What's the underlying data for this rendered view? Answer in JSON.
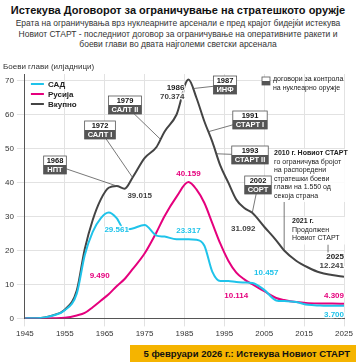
{
  "chart_data": {
    "type": "line",
    "title": "Истекува Договорот за ограничување на стратешкото оружје",
    "subtitle": "Ерата на ограничувања врз нуклеарните арсенали е пред крајот бидејќи истекува Новиот СТАРТ - последниот договор за ограничување на оперативните ракети и боеви глави во двата најголеми светски арсенала",
    "footer": "5 февруари 2026 г.: Истекува Новиот СТАРТ",
    "y_label": "Боеви глави (илјадници)",
    "x": [
      1945,
      1948,
      1950,
      1952,
      1955,
      1958,
      1960,
      1962,
      1964,
      1966,
      1968,
      1970,
      1972,
      1975,
      1978,
      1980,
      1983,
      1986,
      1988,
      1990,
      1992,
      1994,
      1996,
      1998,
      2000,
      2002,
      2005,
      2008,
      2010,
      2013,
      2016,
      2019,
      2022,
      2025
    ],
    "series": [
      {
        "name": "САД",
        "color": "#1fc3ea",
        "values": [
          0.002,
          0.05,
          0.3,
          0.84,
          2.4,
          7.3,
          18.6,
          25.5,
          29.5,
          31.2,
          29.561,
          26,
          26.5,
          27.5,
          24.4,
          24.1,
          23.3,
          23.317,
          23.2,
          21.4,
          13.7,
          11,
          11,
          10.7,
          10.6,
          10.457,
          8.4,
          5.3,
          5.1,
          4.8,
          4,
          3.8,
          3.7,
          3.7
        ],
        "value_labels": [
          null,
          null,
          null,
          null,
          null,
          null,
          null,
          null,
          null,
          null,
          "29.561",
          null,
          null,
          null,
          null,
          null,
          null,
          "23.317",
          null,
          null,
          null,
          null,
          null,
          null,
          null,
          "10.457",
          null,
          null,
          null,
          null,
          null,
          null,
          null,
          "3.700"
        ]
      },
      {
        "name": "Русија",
        "color": "#e5007d",
        "values": [
          0,
          0,
          0.005,
          0.05,
          0.2,
          0.87,
          1.6,
          3.3,
          5.2,
          7.1,
          9.49,
          11.6,
          14.5,
          19.1,
          25.4,
          30.1,
          35.8,
          40.159,
          38,
          34,
          28,
          22,
          17,
          13.5,
          11.5,
          10.114,
          8,
          6,
          5.4,
          4.8,
          4.5,
          4.4,
          4.4,
          4.309
        ],
        "value_labels": [
          null,
          null,
          null,
          null,
          null,
          null,
          null,
          null,
          null,
          null,
          "9.490",
          null,
          null,
          null,
          null,
          null,
          null,
          "40.159",
          null,
          null,
          null,
          null,
          null,
          null,
          null,
          "10.114",
          null,
          null,
          null,
          null,
          null,
          null,
          null,
          "4.309"
        ]
      },
      {
        "name": "Вкупно",
        "color": "#444444",
        "values": [
          0.002,
          0.05,
          0.3,
          0.9,
          2.6,
          8.2,
          20.4,
          29,
          35,
          38.5,
          39.015,
          38.2,
          41.5,
          47.2,
          50.5,
          55,
          60,
          70.374,
          65,
          58,
          52,
          45,
          40,
          35,
          32.5,
          31.092,
          27,
          23,
          20,
          17,
          15,
          13.5,
          12.8,
          12.241
        ],
        "value_labels": [
          null,
          null,
          null,
          null,
          null,
          null,
          null,
          null,
          null,
          null,
          "39.015",
          null,
          null,
          null,
          null,
          null,
          null,
          "70.374",
          null,
          null,
          null,
          null,
          null,
          null,
          null,
          "31.092",
          null,
          null,
          null,
          null,
          null,
          null,
          null,
          "12.241"
        ]
      }
    ],
    "xlim": [
      1945,
      2025
    ],
    "xticks": [
      1945,
      1955,
      1965,
      1975,
      1985,
      1995,
      2005,
      2015,
      2025
    ],
    "ylim": [
      0,
      72
    ],
    "yticks": [
      0,
      10,
      20,
      30,
      40,
      50,
      60,
      70
    ],
    "grid": true,
    "legend": "upper left",
    "data_labels": true,
    "year_labels": [
      1986,
      2025
    ],
    "annotation_key": "договори за контрола на нуклеарно оружје",
    "annotations": [
      {
        "x": 1968,
        "label": "НПТ"
      },
      {
        "x": 1972,
        "label": "САЛТ I"
      },
      {
        "x": 1979,
        "label": "САЛТ II"
      },
      {
        "x": 1987,
        "label": "ИНФ"
      },
      {
        "x": 1991,
        "label": "СТАРТ I"
      },
      {
        "x": 1993,
        "label": "СТАРТ II"
      },
      {
        "x": 2002,
        "label": "СОРТ"
      }
    ],
    "notes": [
      {
        "x": 2010,
        "text": "2010 г. Новиот СТАРТ го ограничува бројот на распоредени стратешки боеви глави на 1.550 од секоја страна"
      },
      {
        "x": 2021,
        "text": "2021 г. Продолжен Новиот СТАРТ"
      }
    ]
  }
}
